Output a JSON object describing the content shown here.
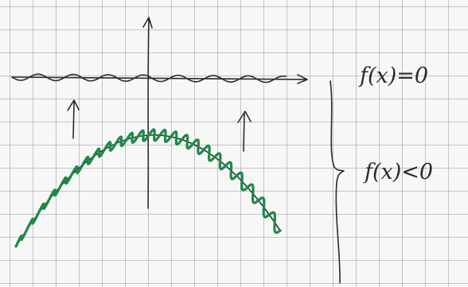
{
  "annotations": {
    "zero": "f(x)=0",
    "negative": "f(x)<0"
  }
}
